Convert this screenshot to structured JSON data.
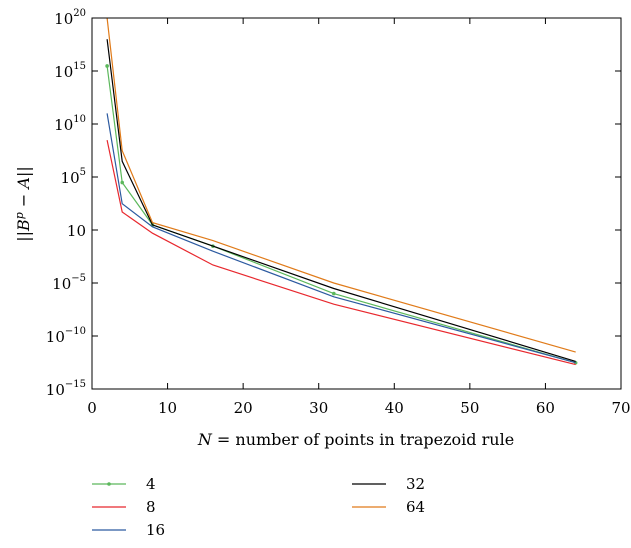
{
  "chart_data": {
    "type": "line",
    "xlabel": "N = number of points in trapezoid rule",
    "xlabel_var": "N",
    "xlabel_rest": " = number of points in trapezoid rule",
    "ylabel": "||B^p − A||",
    "xlim": [
      0,
      70
    ],
    "ylim": [
      1e-15,
      1e+20
    ],
    "yscale": "log",
    "grid": false,
    "legend_position": "below",
    "x_ticks": [
      "0",
      "10",
      "20",
      "30",
      "40",
      "50",
      "60",
      "70"
    ],
    "y_ticks": [
      {
        "base": "10",
        "exp": "−15"
      },
      {
        "base": "10",
        "exp": "−10"
      },
      {
        "base": "10",
        "exp": "−5"
      },
      {
        "base": "10",
        "exp": ""
      },
      {
        "base": "10",
        "exp": "5"
      },
      {
        "base": "10",
        "exp": "10"
      },
      {
        "base": "10",
        "exp": "15"
      },
      {
        "base": "10",
        "exp": "20"
      }
    ],
    "y_tick_values": [
      -15,
      -10,
      -5,
      0,
      5,
      10,
      15,
      20
    ],
    "series": [
      {
        "name": "4",
        "color": "#5cb85c",
        "marker": true,
        "x": [
          2,
          4,
          8,
          16,
          32,
          64
        ],
        "y": [
          3000000000000000.0,
          30000.0,
          3.0,
          0.03,
          1e-06,
          3e-13
        ]
      },
      {
        "name": "8",
        "color": "#e8282e",
        "marker": false,
        "x": [
          2,
          4,
          8,
          16,
          32,
          64
        ],
        "y": [
          300000000.0,
          50.0,
          0.5,
          0.0005,
          1e-07,
          2e-13
        ]
      },
      {
        "name": "16",
        "color": "#2c5aa0",
        "marker": false,
        "x": [
          2,
          4,
          8,
          16,
          32,
          64
        ],
        "y": [
          100000000000.0,
          300.0,
          2.0,
          0.01,
          5e-07,
          3e-13
        ]
      },
      {
        "name": "32",
        "color": "#000000",
        "marker": false,
        "x": [
          2,
          4,
          8,
          16,
          32,
          64
        ],
        "y": [
          1e+18,
          3000000.0,
          3.0,
          0.03,
          3e-06,
          4e-13
        ]
      },
      {
        "name": "64",
        "color": "#e07b1a",
        "marker": false,
        "x": [
          2,
          4,
          8,
          16,
          32,
          64
        ],
        "y": [
          1e+20,
          30000000.0,
          5.0,
          0.1,
          1e-05,
          3e-12
        ]
      }
    ]
  }
}
